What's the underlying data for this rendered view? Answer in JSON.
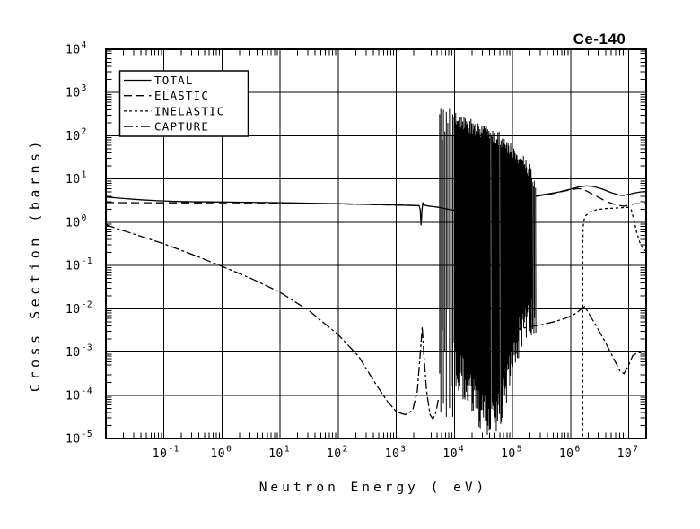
{
  "title": "Ce-140",
  "colors": {
    "foreground": "#000000",
    "background": "#ffffff"
  },
  "axes": {
    "x": {
      "label": "Neutron Energy ( eV)",
      "scale": "log",
      "base": 10,
      "tick_exponents": [
        -1,
        0,
        1,
        2,
        3,
        4,
        5,
        6,
        7
      ]
    },
    "y": {
      "label": "Cross Section (barns)",
      "scale": "log",
      "base": 10,
      "tick_exponents": [
        4,
        3,
        2,
        1,
        0,
        -1,
        -2,
        -3,
        -4,
        -5
      ]
    }
  },
  "legend": {
    "entries": [
      {
        "label": "TOTAL",
        "style": "solid"
      },
      {
        "label": "ELASTIC",
        "style": "long-dash"
      },
      {
        "label": "INELASTIC",
        "style": "short-dash"
      },
      {
        "label": "CAPTURE",
        "style": "dash-dot"
      }
    ]
  },
  "chart_data": {
    "type": "line",
    "title": "Ce-140",
    "xlabel": "Neutron Energy ( eV)",
    "ylabel": "Cross Section (barns)",
    "x_scale": "log",
    "y_scale": "log",
    "xlim": [
      0.01,
      20000000
    ],
    "ylim": [
      1e-05,
      10000
    ],
    "grid": true,
    "legend_position": "upper-left",
    "units_note": "curve points are [log10(energy eV), log10(cross-section barns)]",
    "series": [
      {
        "name": "TOTAL",
        "style": "solid",
        "segments": [
          [
            [
              -2,
              0.585
            ],
            [
              -1.7,
              0.55
            ],
            [
              -1.4,
              0.52
            ],
            [
              -1.1,
              0.497
            ],
            [
              -0.8,
              0.483
            ],
            [
              -0.5,
              0.475
            ],
            [
              -0.2,
              0.47
            ],
            [
              0,
              0.468
            ],
            [
              0.4,
              0.462
            ],
            [
              0.8,
              0.455
            ],
            [
              1.2,
              0.447
            ],
            [
              1.6,
              0.438
            ],
            [
              2.0,
              0.428
            ],
            [
              2.4,
              0.417
            ],
            [
              2.8,
              0.405
            ],
            [
              3.1,
              0.396
            ],
            [
              3.3,
              0.39
            ],
            [
              3.39,
              0.385
            ],
            [
              3.41,
              0.3
            ],
            [
              3.425,
              -0.07
            ],
            [
              3.44,
              0.25
            ],
            [
              3.455,
              0.46
            ],
            [
              3.47,
              0.4
            ],
            [
              3.55,
              0.375
            ],
            [
              3.65,
              0.36
            ],
            [
              3.73,
              0.345
            ],
            [
              3.82,
              0.32
            ],
            [
              3.92,
              0.295
            ],
            [
              4.0,
              0.275
            ]
          ],
          [
            [
              5.405,
              0.615
            ],
            [
              5.6,
              0.652
            ],
            [
              5.8,
              0.7
            ],
            [
              6.0,
              0.765
            ],
            [
              6.15,
              0.82
            ],
            [
              6.28,
              0.842
            ],
            [
              6.4,
              0.825
            ],
            [
              6.55,
              0.765
            ],
            [
              6.7,
              0.685
            ],
            [
              6.82,
              0.632
            ],
            [
              6.9,
              0.618
            ],
            [
              7.0,
              0.645
            ],
            [
              7.1,
              0.678
            ],
            [
              7.2,
              0.7
            ],
            [
              7.3,
              0.71
            ]
          ]
        ]
      },
      {
        "name": "ELASTIC",
        "style": "long-dash",
        "segments": [
          [
            [
              -2,
              0.455
            ],
            [
              -1.5,
              0.452
            ],
            [
              -1,
              0.449
            ],
            [
              -0.5,
              0.449
            ],
            [
              0,
              0.452
            ],
            [
              0.4,
              0.45
            ],
            [
              0.8,
              0.447
            ],
            [
              1.2,
              0.441
            ],
            [
              1.6,
              0.434
            ],
            [
              2.0,
              0.425
            ],
            [
              2.4,
              0.414
            ],
            [
              2.8,
              0.403
            ],
            [
              3.1,
              0.394
            ],
            [
              3.3,
              0.388
            ],
            [
              3.39,
              0.383
            ]
          ],
          [
            [
              5.405,
              0.6
            ],
            [
              5.7,
              0.665
            ],
            [
              6.0,
              0.752
            ],
            [
              6.12,
              0.778
            ],
            [
              6.2,
              0.772
            ],
            [
              6.3,
              0.705
            ],
            [
              6.45,
              0.6
            ],
            [
              6.6,
              0.49
            ],
            [
              6.75,
              0.415
            ],
            [
              6.85,
              0.385
            ],
            [
              6.92,
              0.372
            ],
            [
              7.0,
              0.4
            ],
            [
              7.1,
              0.425
            ],
            [
              7.2,
              0.43
            ],
            [
              7.3,
              0.43
            ]
          ]
        ]
      },
      {
        "name": "INELASTIC",
        "style": "short-dash",
        "segments": [
          [
            [
              6.21,
              -4.95
            ],
            [
              6.21,
              -0.5
            ],
            [
              6.215,
              -0.1
            ],
            [
              6.23,
              0.05
            ],
            [
              6.26,
              0.15
            ],
            [
              6.32,
              0.235
            ],
            [
              6.45,
              0.29
            ],
            [
              6.6,
              0.315
            ],
            [
              6.8,
              0.33
            ],
            [
              6.95,
              0.345
            ],
            [
              7.0,
              0.345
            ],
            [
              7.04,
              0.3
            ],
            [
              7.09,
              0.05
            ],
            [
              7.14,
              -0.25
            ],
            [
              7.2,
              -0.5
            ],
            [
              7.26,
              -0.63
            ],
            [
              7.3,
              -0.67
            ]
          ]
        ]
      },
      {
        "name": "CAPTURE",
        "style": "dash-dot",
        "segments": [
          [
            [
              -2,
              -0.06
            ],
            [
              -1.5,
              -0.28
            ],
            [
              -1,
              -0.5
            ],
            [
              -0.5,
              -0.75
            ],
            [
              0,
              -1.02
            ],
            [
              0.5,
              -1.3
            ],
            [
              1,
              -1.62
            ],
            [
              1.5,
              -2.05
            ],
            [
              2,
              -2.6
            ],
            [
              2.35,
              -3.1
            ],
            [
              2.65,
              -3.75
            ],
            [
              2.85,
              -4.15
            ],
            [
              3.0,
              -4.38
            ],
            [
              3.15,
              -4.45
            ],
            [
              3.28,
              -4.35
            ],
            [
              3.36,
              -3.9
            ],
            [
              3.42,
              -2.9
            ],
            [
              3.445,
              -2.42
            ],
            [
              3.47,
              -3.0
            ],
            [
              3.52,
              -3.9
            ],
            [
              3.58,
              -4.45
            ],
            [
              3.63,
              -4.55
            ],
            [
              3.68,
              -4.4
            ],
            [
              3.73,
              -4.05
            ]
          ],
          [
            [
              5.0,
              -2.5
            ],
            [
              5.25,
              -2.43
            ],
            [
              5.5,
              -2.37
            ],
            [
              5.75,
              -2.29
            ],
            [
              5.95,
              -2.2
            ],
            [
              6.1,
              -2.1
            ],
            [
              6.18,
              -2.01
            ],
            [
              6.24,
              -1.95
            ],
            [
              6.3,
              -2.08
            ],
            [
              6.45,
              -2.42
            ],
            [
              6.6,
              -2.78
            ],
            [
              6.75,
              -3.18
            ],
            [
              6.85,
              -3.44
            ],
            [
              6.92,
              -3.5
            ],
            [
              7.0,
              -3.3
            ],
            [
              7.07,
              -3.08
            ],
            [
              7.15,
              -3.02
            ],
            [
              7.3,
              -3.0
            ]
          ]
        ]
      }
    ],
    "resonances": {
      "belongs_to": "TOTAL",
      "resolved_spikes": [
        [
          3.745,
          2.5,
          -3.5
        ],
        [
          3.765,
          2.62,
          -4.4
        ],
        [
          3.79,
          1.9,
          -2.5
        ],
        [
          3.81,
          2.6,
          -4.2
        ],
        [
          3.835,
          2.1,
          -3.0
        ],
        [
          3.86,
          2.55,
          -4.5
        ],
        [
          3.885,
          2.3,
          -2.0
        ],
        [
          3.915,
          2.62,
          -4.3
        ],
        [
          3.945,
          2.0,
          -3.8
        ],
        [
          3.97,
          2.5,
          -4.5
        ],
        [
          3.995,
          2.45,
          -2.8
        ]
      ],
      "dense_region": {
        "log_start": 4.01,
        "log_end": 5.4,
        "step": 0.011,
        "top_envelope": [
          [
            4.01,
            2.55
          ],
          [
            4.2,
            2.45
          ],
          [
            4.4,
            2.32
          ],
          [
            4.6,
            2.22
          ],
          [
            4.8,
            2.08
          ],
          [
            5.0,
            1.85
          ],
          [
            5.15,
            1.6
          ],
          [
            5.3,
            1.35
          ],
          [
            5.4,
            1.05
          ]
        ],
        "bottom_envelope": [
          [
            4.01,
            -3.6
          ],
          [
            4.2,
            -3.9
          ],
          [
            4.4,
            -4.5
          ],
          [
            4.6,
            -4.65
          ],
          [
            4.75,
            -4.6
          ],
          [
            4.9,
            -3.9
          ],
          [
            5.05,
            -3.0
          ],
          [
            5.2,
            -2.55
          ],
          [
            5.4,
            -2.35
          ]
        ]
      }
    }
  }
}
